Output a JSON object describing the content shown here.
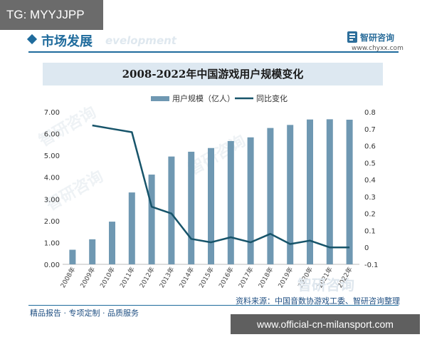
{
  "tg_badge": "TG: MYYJJPP",
  "header": {
    "section_title": "市场发展",
    "watermark_en": "evelopment",
    "brand_name": "智研咨询",
    "brand_url": "www.chyxx.com"
  },
  "footer": {
    "left_text": "精品报告 · 专项定制 · 品质服务",
    "source": "资料来源：中国音数协游戏工委、智研咨询整理"
  },
  "watermarks": {
    "brand_cn": "智研咨询"
  },
  "url_overlay": "www.official-cn-milansport.com",
  "colors": {
    "accent": "#1f6b9c",
    "bar": "#6f98b2",
    "line": "#17546a",
    "title_band": "#dde8f1"
  },
  "chart_data": {
    "type": "bar",
    "title": "2008-2022年中国游戏用户规模变化",
    "categories": [
      "2008年",
      "2009年",
      "2010年",
      "2011年",
      "2012年",
      "2013年",
      "2014年",
      "2015年",
      "2016年",
      "2017年",
      "2018年",
      "2019年",
      "2020年",
      "2021年",
      "2022年"
    ],
    "series": [
      {
        "name": "用户规模（亿人）",
        "type": "bar",
        "axis": "left",
        "values": [
          0.67,
          1.15,
          1.96,
          3.3,
          4.12,
          4.95,
          5.17,
          5.34,
          5.66,
          5.83,
          6.26,
          6.4,
          6.65,
          6.66,
          6.64
        ]
      },
      {
        "name": "同比变化",
        "type": "line",
        "axis": "right",
        "values": [
          null,
          0.72,
          0.7,
          0.68,
          0.24,
          0.2,
          0.05,
          0.03,
          0.06,
          0.03,
          0.08,
          0.02,
          0.04,
          0.0,
          0.0
        ]
      }
    ],
    "left_axis": {
      "ylim": [
        0,
        7
      ],
      "ticks": [
        "0.00",
        "1.00",
        "2.00",
        "3.00",
        "4.00",
        "5.00",
        "6.00",
        "7.00"
      ]
    },
    "right_axis": {
      "ylim": [
        -0.1,
        0.8
      ],
      "ticks": [
        "-0.1",
        "0",
        "0.1",
        "0.2",
        "0.3",
        "0.4",
        "0.5",
        "0.6",
        "0.7",
        "0.8"
      ]
    },
    "x_tick_labels": [
      "2008年",
      "2009年",
      "2010年",
      "2011年",
      "2012年",
      "2013年",
      "2014年",
      "2015年",
      "2016年",
      "2017年",
      "2018年",
      "2019年",
      "2020年",
      "2021年",
      "2022年"
    ],
    "legend_position": "top-center",
    "grid": false
  }
}
